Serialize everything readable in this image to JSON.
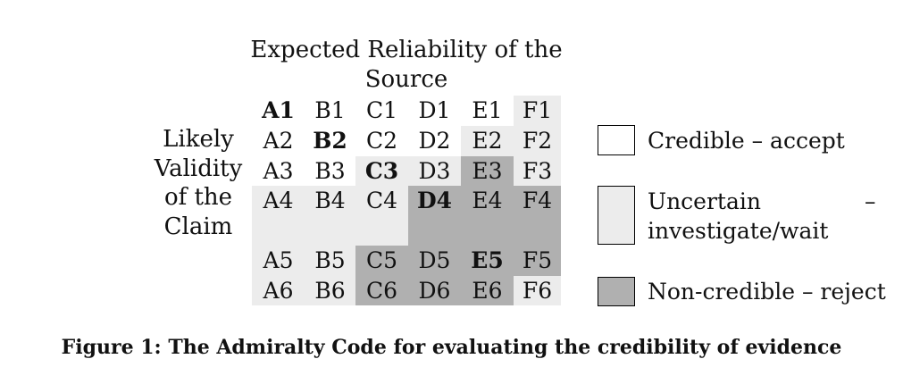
{
  "title_lines": [
    "Expected Reliability of the",
    "Source"
  ],
  "side_label_lines": [
    "Likely",
    "Validity",
    "of the",
    "Claim"
  ],
  "colors": {
    "credible": "#ffffff",
    "uncertain": "#ececec",
    "noncredible": "#b0b0b0",
    "border": "#000000"
  },
  "grid": {
    "columns": [
      "A",
      "B",
      "C",
      "D",
      "E",
      "F"
    ],
    "rows": [
      {
        "cells": [
          {
            "label": "A1",
            "bold": true,
            "shade": "credible"
          },
          {
            "label": "B1",
            "bold": false,
            "shade": "credible"
          },
          {
            "label": "C1",
            "bold": false,
            "shade": "credible"
          },
          {
            "label": "D1",
            "bold": false,
            "shade": "credible"
          },
          {
            "label": "E1",
            "bold": false,
            "shade": "credible"
          },
          {
            "label": "F1",
            "bold": false,
            "shade": "uncertain"
          }
        ]
      },
      {
        "cells": [
          {
            "label": "A2",
            "bold": false,
            "shade": "credible"
          },
          {
            "label": "B2",
            "bold": true,
            "shade": "credible"
          },
          {
            "label": "C2",
            "bold": false,
            "shade": "credible"
          },
          {
            "label": "D2",
            "bold": false,
            "shade": "credible"
          },
          {
            "label": "E2",
            "bold": false,
            "shade": "uncertain"
          },
          {
            "label": "F2",
            "bold": false,
            "shade": "uncertain"
          }
        ]
      },
      {
        "cells": [
          {
            "label": "A3",
            "bold": false,
            "shade": "credible"
          },
          {
            "label": "B3",
            "bold": false,
            "shade": "credible"
          },
          {
            "label": "C3",
            "bold": true,
            "shade": "uncertain"
          },
          {
            "label": "D3",
            "bold": false,
            "shade": "uncertain"
          },
          {
            "label": "E3",
            "bold": false,
            "shade": "noncredible"
          },
          {
            "label": "F3",
            "bold": false,
            "shade": "uncertain"
          }
        ]
      },
      {
        "cells": [
          {
            "label": "A4",
            "bold": false,
            "shade": "uncertain"
          },
          {
            "label": "B4",
            "bold": false,
            "shade": "uncertain"
          },
          {
            "label": "C4",
            "bold": false,
            "shade": "uncertain"
          },
          {
            "label": "D4",
            "bold": true,
            "shade": "noncredible"
          },
          {
            "label": "E4",
            "bold": false,
            "shade": "noncredible"
          },
          {
            "label": "F4",
            "bold": false,
            "shade": "noncredible"
          }
        ]
      },
      {
        "cells": [
          {
            "label": "",
            "bold": false,
            "shade": "uncertain"
          },
          {
            "label": "",
            "bold": false,
            "shade": "uncertain"
          },
          {
            "label": "",
            "bold": false,
            "shade": "uncertain"
          },
          {
            "label": "",
            "bold": false,
            "shade": "noncredible"
          },
          {
            "label": "",
            "bold": false,
            "shade": "noncredible"
          },
          {
            "label": "",
            "bold": false,
            "shade": "noncredible"
          }
        ]
      },
      {
        "cells": [
          {
            "label": "A5",
            "bold": false,
            "shade": "uncertain"
          },
          {
            "label": "B5",
            "bold": false,
            "shade": "uncertain"
          },
          {
            "label": "C5",
            "bold": false,
            "shade": "noncredible"
          },
          {
            "label": "D5",
            "bold": false,
            "shade": "noncredible"
          },
          {
            "label": "E5",
            "bold": true,
            "shade": "noncredible"
          },
          {
            "label": "F5",
            "bold": false,
            "shade": "noncredible"
          }
        ]
      },
      {
        "cells": [
          {
            "label": "A6",
            "bold": false,
            "shade": "uncertain"
          },
          {
            "label": "B6",
            "bold": false,
            "shade": "uncertain"
          },
          {
            "label": "C6",
            "bold": false,
            "shade": "noncredible"
          },
          {
            "label": "D6",
            "bold": false,
            "shade": "noncredible"
          },
          {
            "label": "E6",
            "bold": false,
            "shade": "noncredible"
          },
          {
            "label": "F6",
            "bold": false,
            "shade": "uncertain"
          }
        ]
      }
    ]
  },
  "legend": [
    {
      "shade": "credible",
      "lines": [
        "Credible – accept"
      ]
    },
    {
      "shade": "uncertain",
      "lines": [
        "Uncertain",
        "investigate/wait"
      ],
      "trailing_dash": "–"
    },
    {
      "shade": "noncredible",
      "lines": [
        "Non-credible – reject"
      ]
    }
  ],
  "caption": "Figure 1: The Admiralty Code for evaluating the credibility of evidence"
}
